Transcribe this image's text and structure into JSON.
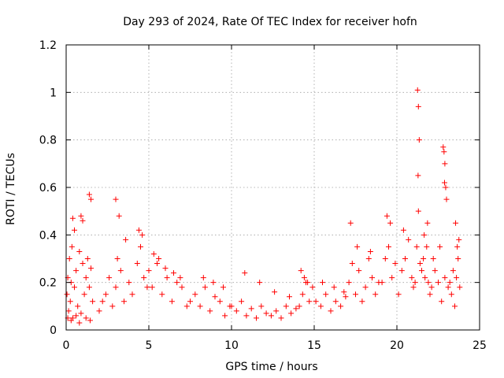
{
  "chart_data": {
    "type": "scatter",
    "title": "Day 293 of 2024, Rate Of TEC Index for receiver hofn",
    "xlabel": "GPS time / hours",
    "ylabel": "ROTI / TECUs",
    "xlim": [
      0,
      25
    ],
    "ylim": [
      0,
      1.2
    ],
    "xticks": [
      0,
      5,
      10,
      15,
      20,
      25
    ],
    "xtick_labels": [
      "0",
      "5",
      "10",
      "15",
      "20",
      "25"
    ],
    "yticks": [
      0,
      0.2,
      0.4,
      0.6,
      0.8,
      1.0,
      1.2
    ],
    "ytick_labels": [
      "0",
      "0.2",
      "0.4",
      "0.6",
      "0.8",
      "1",
      "1.2"
    ],
    "grid": true,
    "marker": "plus",
    "color": "#ff0000",
    "series": [
      {
        "name": "ROTI",
        "x": [
          0.05,
          0.1,
          0.15,
          0.2,
          0.25,
          0.3,
          0.35,
          0.4,
          0.5,
          0.6,
          0.7,
          0.8,
          0.9,
          1.0,
          1.1,
          1.2,
          1.3,
          1.4,
          1.5,
          1.6,
          0.4,
          0.5,
          0.9,
          1.0,
          1.4,
          1.5,
          0.1,
          0.3,
          0.6,
          0.8,
          1.2,
          1.45,
          2.0,
          2.2,
          2.4,
          2.6,
          2.8,
          3.0,
          3.1,
          3.3,
          3.5,
          3.8,
          4.0,
          4.3,
          4.5,
          4.7,
          4.9,
          3.0,
          3.2,
          3.6,
          4.4,
          4.6,
          5.0,
          5.2,
          5.5,
          5.8,
          6.1,
          6.4,
          6.7,
          7.0,
          7.3,
          5.3,
          5.6,
          6.0,
          6.5,
          6.9,
          7.5,
          7.8,
          8.1,
          8.4,
          8.7,
          9.0,
          9.3,
          9.6,
          9.9,
          8.3,
          8.9,
          9.5,
          10.0,
          10.3,
          10.6,
          10.9,
          11.2,
          11.5,
          11.8,
          12.1,
          12.4,
          12.7,
          13.0,
          13.3,
          13.6,
          13.9,
          10.8,
          11.7,
          12.6,
          13.5,
          14.1,
          14.3,
          14.5,
          14.7,
          14.9,
          14.2,
          14.4,
          14.6,
          15.1,
          15.4,
          15.7,
          16.0,
          16.3,
          16.6,
          16.9,
          15.5,
          16.2,
          16.8,
          17.1,
          17.3,
          17.5,
          17.7,
          17.9,
          18.1,
          18.3,
          18.5,
          18.7,
          18.9,
          17.2,
          17.6,
          18.4,
          19.1,
          19.3,
          19.5,
          19.7,
          19.9,
          19.4,
          19.6,
          20.1,
          20.3,
          20.5,
          20.7,
          20.9,
          20.4,
          21.0,
          21.1,
          21.2,
          21.3,
          21.4,
          21.5,
          21.25,
          21.3,
          21.35,
          21.28,
          21.6,
          21.7,
          21.8,
          21.9,
          22.0,
          21.65,
          21.85,
          22.1,
          22.3,
          22.5,
          22.7,
          22.9,
          23.1,
          22.2,
          22.6,
          22.8,
          22.85,
          22.9,
          22.95,
          23.0,
          22.88,
          23.2,
          23.3,
          23.4,
          23.5,
          23.6,
          23.7,
          23.8,
          23.55,
          23.75,
          23.65
        ],
        "y": [
          0.15,
          0.22,
          0.08,
          0.3,
          0.12,
          0.2,
          0.35,
          0.05,
          0.18,
          0.25,
          0.1,
          0.33,
          0.07,
          0.28,
          0.15,
          0.22,
          0.3,
          0.18,
          0.26,
          0.12,
          0.47,
          0.42,
          0.48,
          0.46,
          0.57,
          0.55,
          0.05,
          0.04,
          0.06,
          0.03,
          0.05,
          0.04,
          0.08,
          0.12,
          0.15,
          0.22,
          0.1,
          0.18,
          0.3,
          0.25,
          0.12,
          0.2,
          0.15,
          0.28,
          0.35,
          0.22,
          0.18,
          0.55,
          0.48,
          0.38,
          0.42,
          0.4,
          0.25,
          0.18,
          0.28,
          0.15,
          0.22,
          0.12,
          0.2,
          0.18,
          0.1,
          0.32,
          0.3,
          0.26,
          0.24,
          0.22,
          0.12,
          0.15,
          0.1,
          0.18,
          0.08,
          0.14,
          0.12,
          0.06,
          0.1,
          0.22,
          0.2,
          0.18,
          0.1,
          0.08,
          0.12,
          0.06,
          0.09,
          0.05,
          0.1,
          0.07,
          0.06,
          0.08,
          0.05,
          0.1,
          0.07,
          0.09,
          0.24,
          0.2,
          0.16,
          0.14,
          0.1,
          0.15,
          0.2,
          0.12,
          0.18,
          0.25,
          0.22,
          0.2,
          0.12,
          0.1,
          0.15,
          0.08,
          0.12,
          0.1,
          0.14,
          0.2,
          0.18,
          0.16,
          0.2,
          0.28,
          0.15,
          0.25,
          0.12,
          0.18,
          0.3,
          0.22,
          0.15,
          0.2,
          0.45,
          0.35,
          0.33,
          0.2,
          0.3,
          0.35,
          0.22,
          0.28,
          0.48,
          0.45,
          0.15,
          0.25,
          0.3,
          0.38,
          0.22,
          0.42,
          0.18,
          0.2,
          0.35,
          0.5,
          0.28,
          0.25,
          1.01,
          0.94,
          0.8,
          0.65,
          0.3,
          0.22,
          0.35,
          0.2,
          0.15,
          0.4,
          0.45,
          0.18,
          0.25,
          0.2,
          0.12,
          0.22,
          0.18,
          0.3,
          0.35,
          0.77,
          0.75,
          0.7,
          0.6,
          0.55,
          0.62,
          0.2,
          0.15,
          0.25,
          0.1,
          0.22,
          0.3,
          0.18,
          0.45,
          0.38,
          0.35
        ]
      }
    ]
  }
}
